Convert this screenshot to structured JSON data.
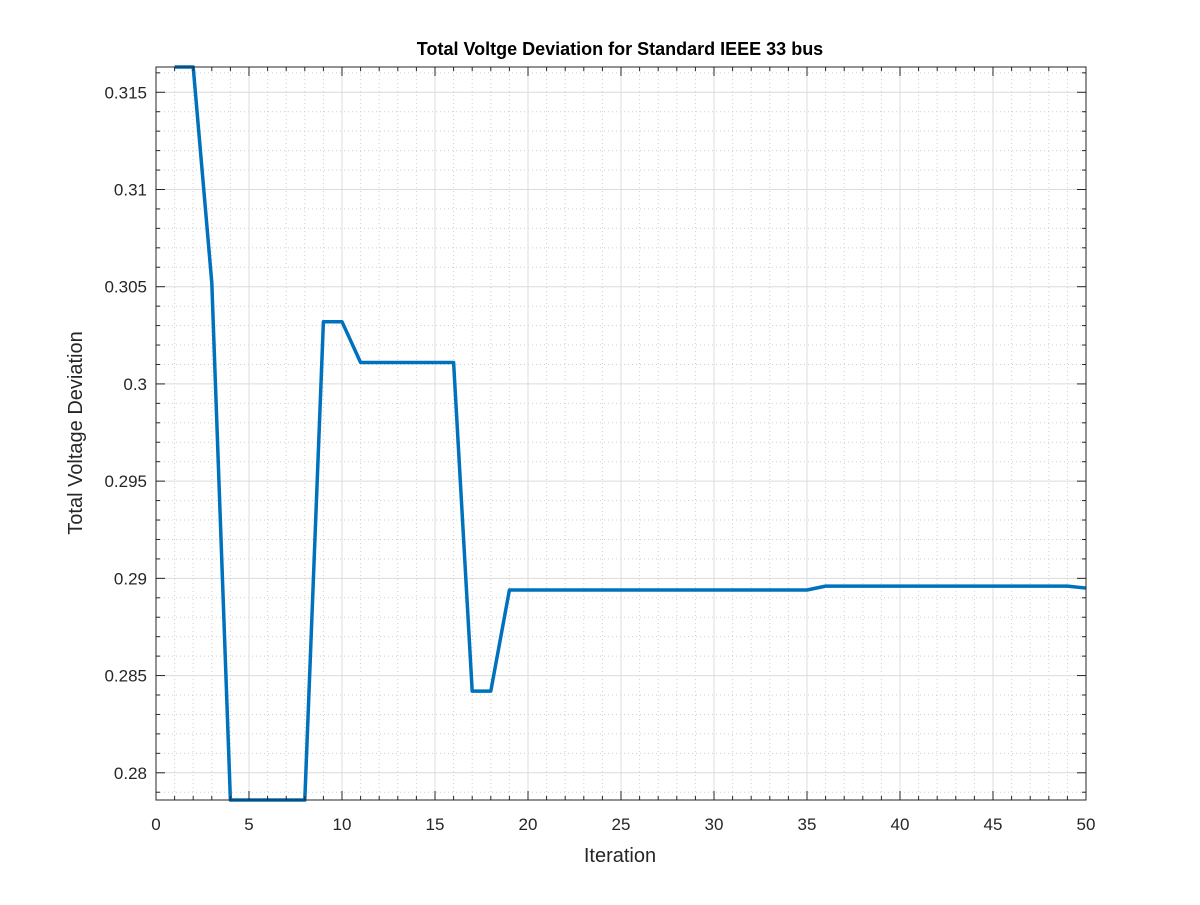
{
  "chart_data": {
    "type": "line",
    "title": "Total Voltge Deviation for Standard IEEE  33 bus",
    "xlabel": "Iteration",
    "ylabel": "Total Voltage Deviation",
    "xlim": [
      0,
      50
    ],
    "ylim": [
      0.2786,
      0.3163
    ],
    "xticks": [
      0,
      5,
      10,
      15,
      20,
      25,
      30,
      35,
      40,
      45,
      50
    ],
    "xtick_labels": [
      "0",
      "5",
      "10",
      "15",
      "20",
      "25",
      "30",
      "35",
      "40",
      "45",
      "50"
    ],
    "yticks": [
      0.28,
      0.285,
      0.29,
      0.295,
      0.3,
      0.305,
      0.31,
      0.315
    ],
    "ytick_labels": [
      "0.28",
      "0.285",
      "0.29",
      "0.295",
      "0.3",
      "0.305",
      "0.31",
      "0.315"
    ],
    "grid": true,
    "minor_grid": true,
    "series": [
      {
        "color": "#0072BD",
        "x": [
          1,
          2,
          3,
          4,
          5,
          6,
          7,
          8,
          9,
          10,
          11,
          12,
          13,
          14,
          15,
          16,
          17,
          18,
          19,
          20,
          21,
          22,
          23,
          24,
          25,
          26,
          27,
          28,
          29,
          30,
          31,
          32,
          33,
          34,
          35,
          36,
          37,
          38,
          39,
          40,
          41,
          42,
          43,
          44,
          45,
          46,
          47,
          48,
          49,
          50
        ],
        "y": [
          0.3163,
          0.3163,
          0.3052,
          0.2786,
          0.2786,
          0.2786,
          0.2786,
          0.2786,
          0.3032,
          0.3032,
          0.3011,
          0.3011,
          0.3011,
          0.3011,
          0.3011,
          0.3011,
          0.2842,
          0.2842,
          0.2894,
          0.2894,
          0.2894,
          0.2894,
          0.2894,
          0.2894,
          0.2894,
          0.2894,
          0.2894,
          0.2894,
          0.2894,
          0.2894,
          0.2894,
          0.2894,
          0.2894,
          0.2894,
          0.2894,
          0.2896,
          0.2896,
          0.2896,
          0.2896,
          0.2896,
          0.2896,
          0.2896,
          0.2896,
          0.2896,
          0.2896,
          0.2896,
          0.2896,
          0.2896,
          0.2896,
          0.2895
        ]
      }
    ]
  }
}
